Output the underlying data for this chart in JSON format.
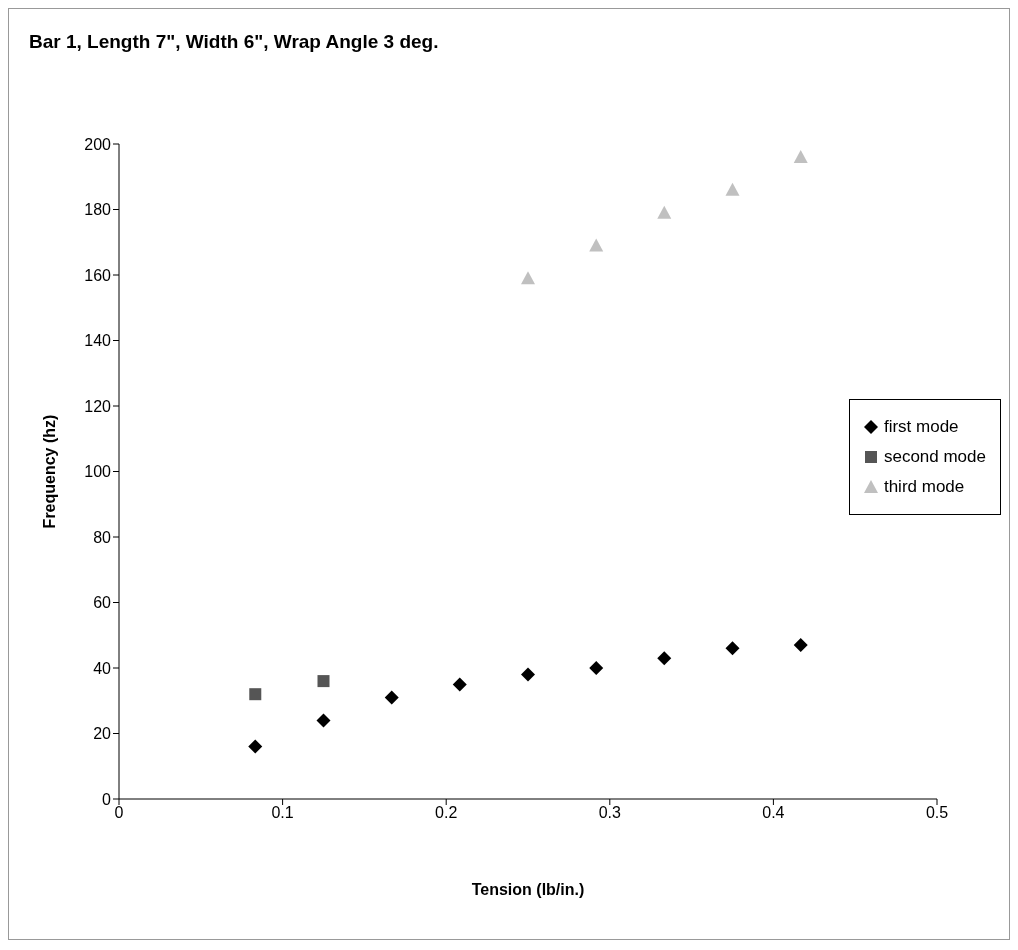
{
  "chart_data": {
    "type": "scatter",
    "title": "Bar 1, Length 7\", Width 6\", Wrap Angle 3 deg.",
    "xlabel": "Tension (lb/in.)",
    "ylabel": "Frequency (hz)",
    "xlim": [
      0,
      0.5
    ],
    "xticks": [
      0,
      0.1,
      0.2,
      0.3,
      0.4,
      0.5
    ],
    "ylim": [
      0,
      200
    ],
    "yticks": [
      0,
      20,
      40,
      60,
      80,
      100,
      120,
      140,
      160,
      180,
      200
    ],
    "grid": false,
    "legend": "right",
    "series": [
      {
        "name": "first mode",
        "color": "#000000",
        "marker": "diamond",
        "x": [
          0.0833,
          0.125,
          0.1667,
          0.2083,
          0.25,
          0.2917,
          0.3333,
          0.375,
          0.4167
        ],
        "values": [
          16,
          24,
          31,
          35,
          38,
          40,
          43,
          46,
          47
        ]
      },
      {
        "name": "second mode",
        "color": "#555555",
        "marker": "square",
        "x": [
          0.0833,
          0.125
        ],
        "values": [
          32,
          36
        ]
      },
      {
        "name": "third mode",
        "color": "#c0c0c0",
        "marker": "triangle",
        "x": [
          0.25,
          0.2917,
          0.3333,
          0.375,
          0.4167
        ],
        "values": [
          159,
          169,
          179,
          186,
          196
        ]
      }
    ]
  }
}
